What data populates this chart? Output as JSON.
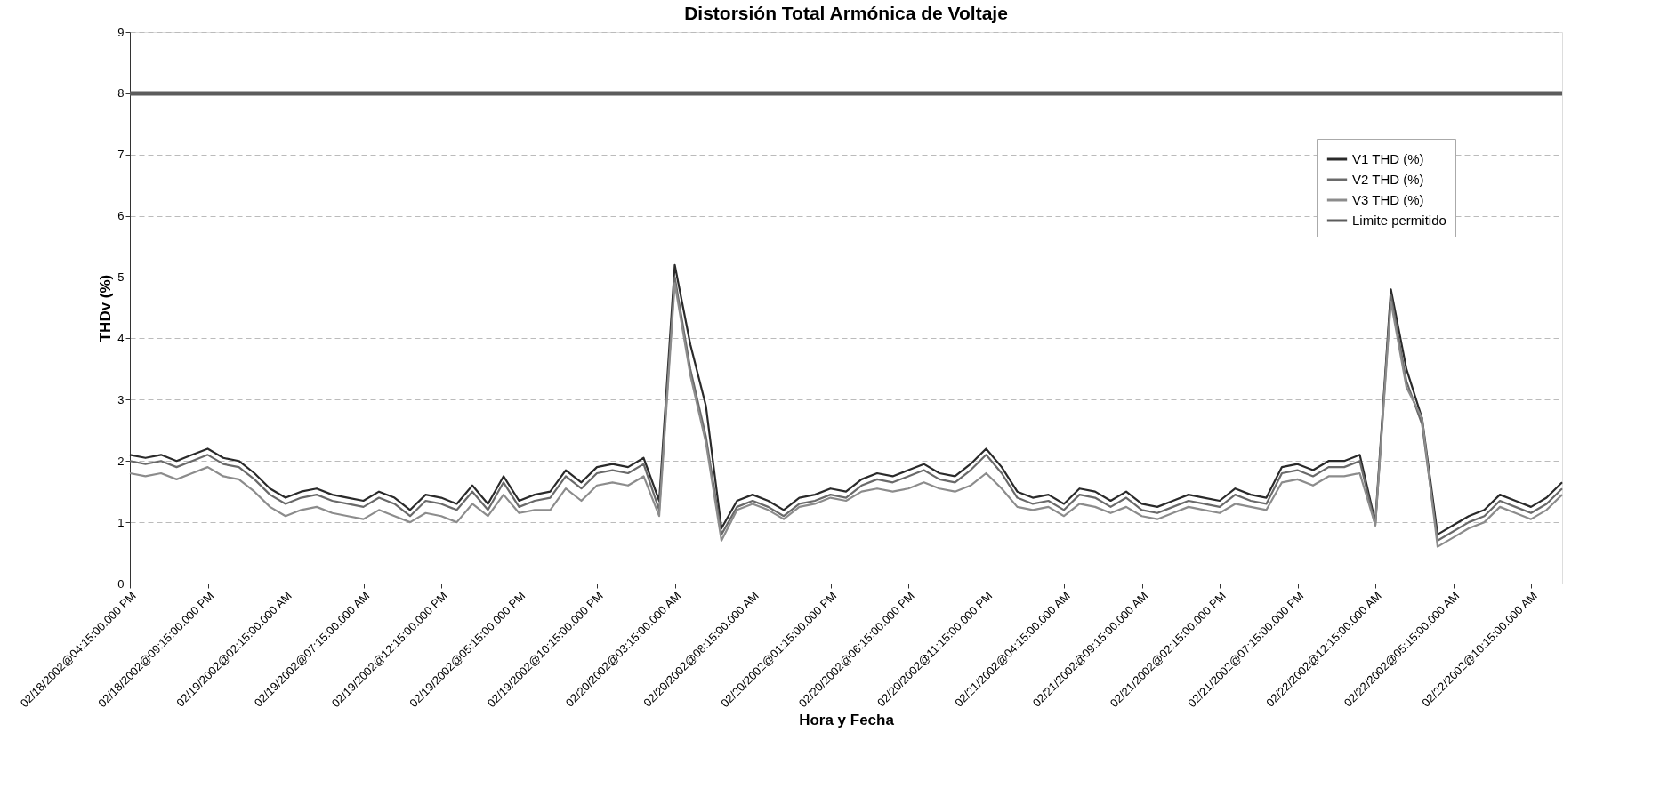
{
  "chart_data": {
    "type": "line",
    "title": "Distorsión Total Armónica de Voltaje",
    "xlabel": "Hora y Fecha",
    "ylabel": "THDv (%)",
    "categories": [
      "02/18/2002@04:15:00.000 PM",
      null,
      null,
      null,
      null,
      "02/18/2002@09:15:00.000 PM",
      null,
      null,
      null,
      null,
      "02/19/2002@02:15:00.000 AM",
      null,
      null,
      null,
      null,
      "02/19/2002@07:15:00.000 AM",
      null,
      null,
      null,
      null,
      "02/19/2002@12:15:00.000 PM",
      null,
      null,
      null,
      null,
      "02/19/2002@05:15:00.000 PM",
      null,
      null,
      null,
      null,
      "02/19/2002@10:15:00.000 PM",
      null,
      null,
      null,
      null,
      "02/20/2002@03:15:00.000 AM",
      null,
      null,
      null,
      null,
      "02/20/2002@08:15:00.000 AM",
      null,
      null,
      null,
      null,
      "02/20/2002@01:15:00.000 PM",
      null,
      null,
      null,
      null,
      "02/20/2002@06:15:00.000 PM",
      null,
      null,
      null,
      null,
      "02/20/2002@11:15:00.000 PM",
      null,
      null,
      null,
      null,
      "02/21/2002@04:15:00.000 AM",
      null,
      null,
      null,
      null,
      "02/21/2002@09:15:00.000 AM",
      null,
      null,
      null,
      null,
      "02/21/2002@02:15:00.000 PM",
      null,
      null,
      null,
      null,
      "02/21/2002@07:15:00.000 PM",
      null,
      null,
      null,
      null,
      "02/22/2002@12:15:00.000 AM",
      null,
      null,
      null,
      null,
      "02/22/2002@05:15:00.000 AM",
      null,
      null,
      null,
      null,
      "02/22/2002@10:15:00.000 AM",
      null,
      null
    ],
    "series": [
      {
        "name": "V1 THD (%)",
        "color": "#2a2a2a",
        "values": [
          2.1,
          2.05,
          2.1,
          2.0,
          2.1,
          2.2,
          2.05,
          2.0,
          1.8,
          1.55,
          1.4,
          1.5,
          1.55,
          1.45,
          1.4,
          1.35,
          1.5,
          1.4,
          1.2,
          1.45,
          1.4,
          1.3,
          1.6,
          1.3,
          1.75,
          1.35,
          1.45,
          1.5,
          1.85,
          1.65,
          1.9,
          1.95,
          1.9,
          2.05,
          1.35,
          5.2,
          3.9,
          2.9,
          0.9,
          1.35,
          1.45,
          1.35,
          1.2,
          1.4,
          1.45,
          1.55,
          1.5,
          1.7,
          1.8,
          1.75,
          1.85,
          1.95,
          1.8,
          1.75,
          1.95,
          2.2,
          1.9,
          1.5,
          1.4,
          1.45,
          1.3,
          1.55,
          1.5,
          1.35,
          1.5,
          1.3,
          1.25,
          1.35,
          1.45,
          1.4,
          1.35,
          1.55,
          1.45,
          1.4,
          1.9,
          1.95,
          1.85,
          2.0,
          2.0,
          2.1,
          1.0,
          4.8,
          3.5,
          2.7,
          0.8,
          0.95,
          1.1,
          1.2,
          1.45,
          1.35,
          1.25,
          1.4,
          1.65
        ]
      },
      {
        "name": "V2 THD (%)",
        "color": "#6a6a6a",
        "values": [
          2.0,
          1.95,
          2.0,
          1.9,
          2.0,
          2.1,
          1.95,
          1.9,
          1.7,
          1.45,
          1.3,
          1.4,
          1.45,
          1.35,
          1.3,
          1.25,
          1.4,
          1.3,
          1.1,
          1.35,
          1.3,
          1.2,
          1.5,
          1.2,
          1.65,
          1.25,
          1.35,
          1.4,
          1.75,
          1.55,
          1.8,
          1.85,
          1.8,
          1.95,
          1.2,
          5.0,
          3.5,
          2.4,
          0.8,
          1.25,
          1.35,
          1.25,
          1.1,
          1.3,
          1.35,
          1.45,
          1.4,
          1.6,
          1.7,
          1.65,
          1.75,
          1.85,
          1.7,
          1.65,
          1.85,
          2.1,
          1.8,
          1.4,
          1.3,
          1.35,
          1.2,
          1.45,
          1.4,
          1.25,
          1.4,
          1.2,
          1.15,
          1.25,
          1.35,
          1.3,
          1.25,
          1.45,
          1.35,
          1.3,
          1.8,
          1.85,
          1.75,
          1.9,
          1.9,
          2.0,
          0.95,
          4.7,
          3.3,
          2.6,
          0.7,
          0.85,
          1.0,
          1.1,
          1.35,
          1.25,
          1.15,
          1.3,
          1.55
        ]
      },
      {
        "name": "V3 THD (%)",
        "color": "#8c8c8c",
        "values": [
          1.8,
          1.75,
          1.8,
          1.7,
          1.8,
          1.9,
          1.75,
          1.7,
          1.5,
          1.25,
          1.1,
          1.2,
          1.25,
          1.15,
          1.1,
          1.05,
          1.2,
          1.1,
          1.0,
          1.15,
          1.1,
          1.0,
          1.3,
          1.1,
          1.45,
          1.15,
          1.2,
          1.2,
          1.55,
          1.35,
          1.6,
          1.65,
          1.6,
          1.75,
          1.1,
          4.9,
          3.4,
          2.3,
          0.7,
          1.2,
          1.3,
          1.2,
          1.05,
          1.25,
          1.3,
          1.4,
          1.35,
          1.5,
          1.55,
          1.5,
          1.55,
          1.65,
          1.55,
          1.5,
          1.6,
          1.8,
          1.55,
          1.25,
          1.2,
          1.25,
          1.1,
          1.3,
          1.25,
          1.15,
          1.25,
          1.1,
          1.05,
          1.15,
          1.25,
          1.2,
          1.15,
          1.3,
          1.25,
          1.2,
          1.65,
          1.7,
          1.6,
          1.75,
          1.75,
          1.8,
          0.95,
          4.6,
          3.2,
          2.7,
          0.6,
          0.75,
          0.9,
          1.0,
          1.25,
          1.15,
          1.05,
          1.2,
          1.45
        ]
      }
    ],
    "ref_lines": [
      {
        "axis": "y",
        "value": 8,
        "label": "Limite permitido",
        "color": "#5c5c5c"
      }
    ],
    "ylim": [
      0,
      9
    ],
    "yticks": [
      0,
      1,
      2,
      3,
      4,
      5,
      6,
      7,
      8,
      9
    ],
    "grid": "y",
    "legend": "top right"
  }
}
